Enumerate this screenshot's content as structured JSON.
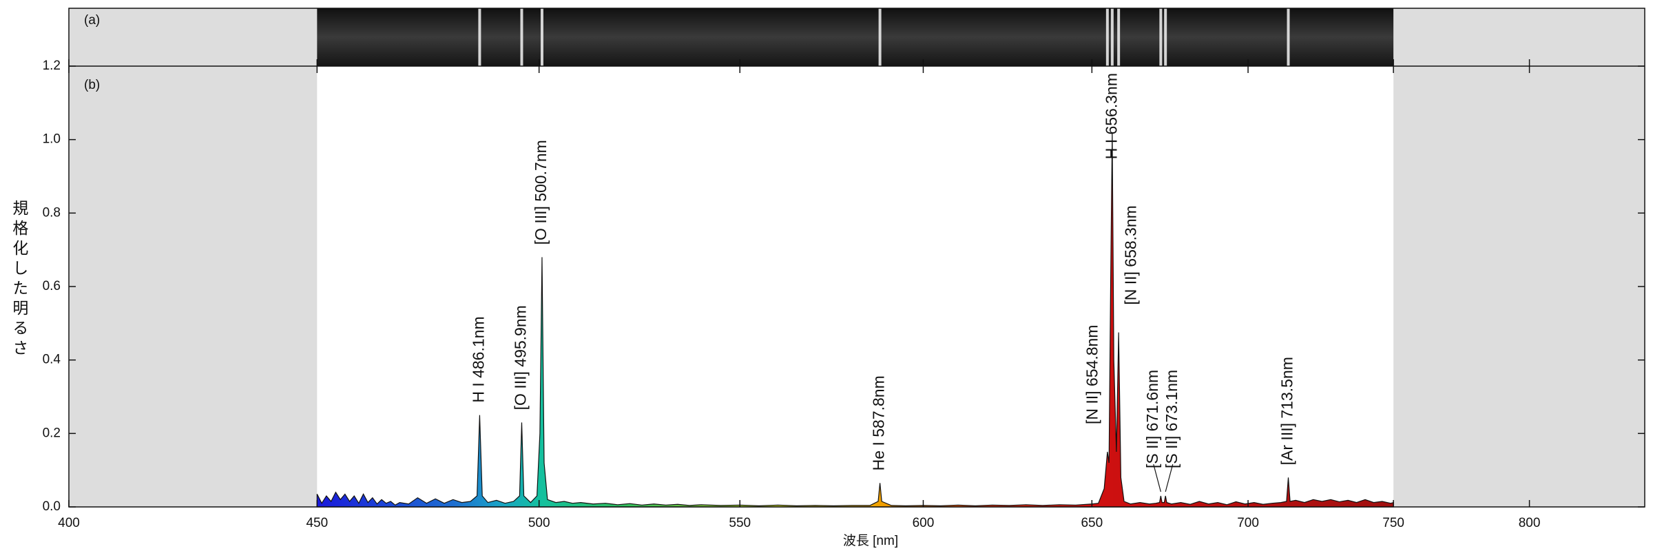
{
  "chart_data": {
    "type": "area",
    "panel_labels": [
      "(a)",
      "(b)"
    ],
    "xlabel": "波長 [nm]",
    "ylabel": "規格化した明るさ",
    "xscale": "log",
    "xlim": [
      400,
      845
    ],
    "xticks": [
      400,
      450,
      500,
      550,
      600,
      650,
      700,
      750,
      800
    ],
    "ylim": [
      0,
      1.2
    ],
    "yticks": [
      {
        "value": 0,
        "label": "0.0"
      },
      0.2,
      0.4,
      0.6,
      0.8,
      {
        "value": 1,
        "label": "1.0"
      },
      1.2
    ],
    "shaded_ranges": [
      [
        400,
        450
      ],
      [
        750,
        845
      ]
    ],
    "shade_color": "#dddddd",
    "color_stops": [
      {
        "value": 450,
        "color": "#1a1adb"
      },
      {
        "value": 480,
        "color": "#1e6ed0"
      },
      {
        "value": 490,
        "color": "#1aa0c8"
      },
      {
        "value": 500,
        "color": "#14c0a0"
      },
      {
        "value": 520,
        "color": "#30c060"
      },
      {
        "value": 550,
        "color": "#a0d030"
      },
      {
        "value": 570,
        "color": "#e0d020"
      },
      {
        "value": 588,
        "color": "#f0a000"
      },
      {
        "value": 620,
        "color": "#e03010"
      },
      {
        "value": 650,
        "color": "#d01010"
      },
      {
        "value": 750,
        "color": "#a01010"
      }
    ],
    "x": [
      450,
      451,
      452,
      453,
      454,
      455,
      456,
      457,
      458,
      459,
      460,
      461,
      462,
      463,
      464,
      465,
      466,
      467,
      468,
      470,
      472,
      474,
      476,
      478,
      480,
      482,
      484,
      485.5,
      486.1,
      486.7,
      488,
      490,
      492,
      494,
      495.4,
      495.9,
      496.4,
      498,
      499.5,
      500.2,
      500.7,
      501.2,
      502,
      504,
      506,
      508,
      510,
      513,
      516,
      519,
      522,
      525,
      528,
      531,
      534,
      537,
      540,
      545,
      550,
      555,
      560,
      565,
      570,
      575,
      580,
      585,
      587.3,
      587.8,
      588.3,
      591,
      595,
      600,
      605,
      610,
      615,
      620,
      625,
      630,
      635,
      640,
      645,
      650,
      652,
      653.8,
      654.3,
      654.8,
      655.3,
      655.8,
      656.3,
      656.8,
      657.6,
      658.3,
      659,
      660,
      662,
      665,
      668,
      670,
      671.2,
      671.6,
      672,
      672.7,
      673.1,
      673.5,
      675,
      678,
      681,
      684,
      687,
      690,
      693,
      696,
      699,
      702,
      705,
      708,
      711,
      712.9,
      713.5,
      714.1,
      716,
      719,
      722,
      725,
      728,
      731,
      734,
      737,
      740,
      743,
      746,
      749,
      750
    ],
    "values": [
      0.035,
      0.01,
      0.03,
      0.015,
      0.04,
      0.02,
      0.035,
      0.015,
      0.03,
      0.01,
      0.035,
      0.012,
      0.025,
      0.008,
      0.02,
      0.01,
      0.015,
      0.005,
      0.012,
      0.008,
      0.025,
      0.01,
      0.022,
      0.01,
      0.02,
      0.012,
      0.015,
      0.03,
      0.25,
      0.03,
      0.012,
      0.018,
      0.01,
      0.015,
      0.03,
      0.23,
      0.03,
      0.012,
      0.03,
      0.2,
      0.68,
      0.12,
      0.02,
      0.012,
      0.015,
      0.01,
      0.012,
      0.008,
      0.01,
      0.006,
      0.009,
      0.005,
      0.008,
      0.005,
      0.007,
      0.004,
      0.006,
      0.004,
      0.005,
      0.003,
      0.005,
      0.003,
      0.004,
      0.003,
      0.004,
      0.004,
      0.015,
      0.065,
      0.015,
      0.004,
      0.003,
      0.004,
      0.003,
      0.005,
      0.003,
      0.005,
      0.004,
      0.006,
      0.004,
      0.006,
      0.005,
      0.008,
      0.01,
      0.05,
      0.1,
      0.15,
      0.12,
      0.6,
      1.02,
      0.4,
      0.15,
      0.475,
      0.08,
      0.015,
      0.008,
      0.012,
      0.008,
      0.01,
      0.012,
      0.03,
      0.012,
      0.012,
      0.03,
      0.012,
      0.008,
      0.012,
      0.007,
      0.015,
      0.008,
      0.012,
      0.006,
      0.014,
      0.008,
      0.012,
      0.007,
      0.01,
      0.012,
      0.015,
      0.08,
      0.015,
      0.018,
      0.012,
      0.02,
      0.015,
      0.02,
      0.014,
      0.018,
      0.012,
      0.02,
      0.012,
      0.015,
      0.01,
      0.012
    ],
    "annotations": [
      {
        "x": 486.1,
        "text": "H I 486.1nm"
      },
      {
        "x": 495.9,
        "text": "[O III] 495.9nm"
      },
      {
        "x": 500.7,
        "text": "[O III] 500.7nm"
      },
      {
        "x": 587.8,
        "text": "He I 587.8nm"
      },
      {
        "x": 654.8,
        "text": "[N II] 654.8nm"
      },
      {
        "x": 656.3,
        "text": "H I 656.3nm"
      },
      {
        "x": 658.3,
        "text": "[N II] 658.3nm"
      },
      {
        "x": 671.6,
        "text": "[S II] 671.6nm"
      },
      {
        "x": 673.1,
        "text": "[S II] 673.1nm"
      },
      {
        "x": 713.5,
        "text": "[Ar III] 713.5nm"
      }
    ]
  }
}
